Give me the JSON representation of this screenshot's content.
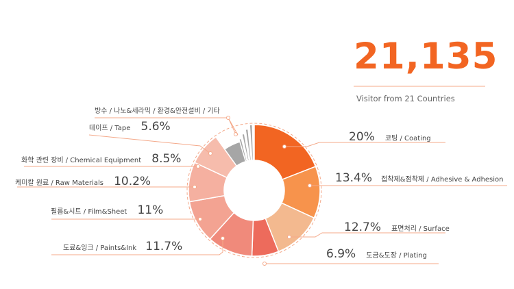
{
  "stats": {
    "visitor_count": "21,135",
    "visitor_caption": "Visitor from 21 Countries"
  },
  "colors": {
    "accent": "#f26522",
    "leader_line": "#f4a98a",
    "others_gray": "#a6a6a6"
  },
  "chart_data": {
    "type": "pie",
    "title": "",
    "slices": [
      {
        "label": "코팅 / Coating",
        "pct_text": "20%",
        "value": 20.0,
        "color": "#f26522"
      },
      {
        "label": "접착제&점착제 / Adhesive & Adhesion",
        "pct_text": "13.4%",
        "value": 13.4,
        "color": "#f7934c"
      },
      {
        "label": "표면처리 / Surface",
        "pct_text": "12.7%",
        "value": 12.7,
        "color": "#f3b98f"
      },
      {
        "label": "도금&도장 / Plating",
        "pct_text": "6.9%",
        "value": 6.9,
        "color": "#ed6b5c"
      },
      {
        "label": "도료&잉크 / Paints&Ink",
        "pct_text": "11.7%",
        "value": 11.7,
        "color": "#f08a7b"
      },
      {
        "label": "필름&시트 / Film&Sheet",
        "pct_text": "11%",
        "value": 11.0,
        "color": "#f3a392"
      },
      {
        "label": "케미칼 원료 / Raw Materials",
        "pct_text": "10.2%",
        "value": 10.2,
        "color": "#f5b0a0"
      },
      {
        "label": "화학 관련 장비 / Chemical Equipment",
        "pct_text": "8.5%",
        "value": 8.5,
        "color": "#f6bcac"
      },
      {
        "label": "테이프 / Tape",
        "pct_text": "5.6%",
        "value": 5.6,
        "color": "#a6a6a6"
      },
      {
        "label": "방수 / 나노&세라믹 / 환경&안전설비 / 기타",
        "pct_text": "",
        "value": 4.8,
        "color": "#a6a6a6"
      }
    ]
  }
}
